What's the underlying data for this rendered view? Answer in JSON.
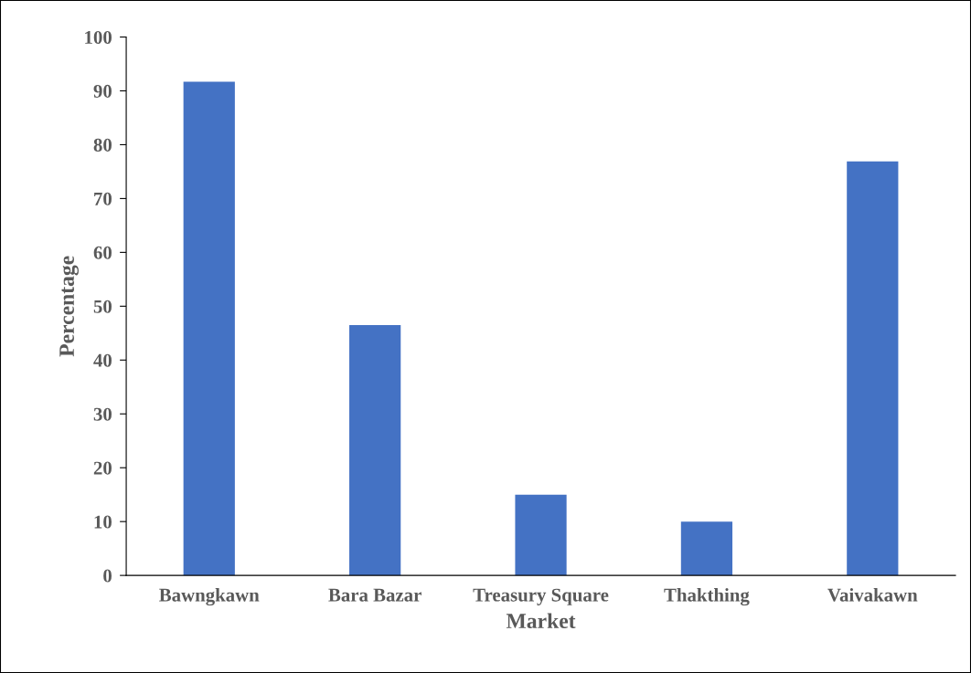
{
  "chart_data": {
    "type": "bar",
    "xlabel": "Market",
    "ylabel": "Percentage",
    "categories": [
      "Bawngkawn",
      "Bara Bazar",
      "Treasury Square",
      "Thakthing",
      "Vaivakawn"
    ],
    "values": [
      91.7,
      46.5,
      15,
      10,
      76.9
    ],
    "color": "#4472c4",
    "ylim": [
      0,
      100
    ],
    "yticks": [
      0,
      10,
      20,
      30,
      40,
      50,
      60,
      70,
      80,
      90,
      100
    ],
    "grid": false,
    "legend": false
  }
}
